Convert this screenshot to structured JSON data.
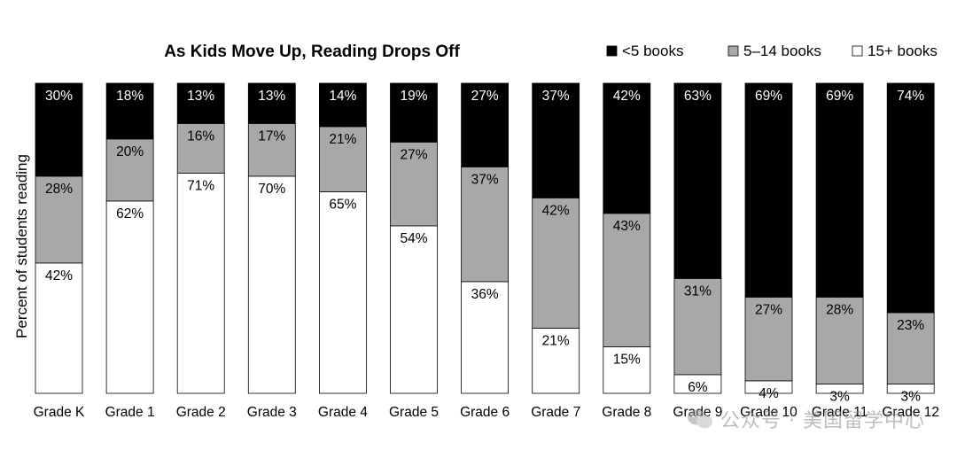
{
  "chart_data": {
    "type": "stacked-bar",
    "title": "As Kids Move Up, Reading Drops Off",
    "ylabel": "Percent of students reading",
    "xlabel": "",
    "ylim": [
      0,
      100
    ],
    "legend_position": "top-right",
    "categories": [
      "Grade K",
      "Grade 1",
      "Grade 2",
      "Grade 3",
      "Grade 4",
      "Grade 5",
      "Grade 6",
      "Grade 7",
      "Grade 8",
      "Grade 9",
      "Grade 10",
      "Grade 11",
      "Grade 12"
    ],
    "series": [
      {
        "name": "<5 books",
        "color": "#000000",
        "label_color": "#ffffff",
        "values": [
          30,
          18,
          13,
          13,
          14,
          19,
          27,
          37,
          42,
          63,
          69,
          69,
          74
        ],
        "labels": [
          "30%",
          "18%",
          "13%",
          "13%",
          "14%",
          "19%",
          "27%",
          "37%",
          "42%",
          "63%",
          "69%",
          "69%",
          "74%"
        ]
      },
      {
        "name": "5–14 books",
        "color": "#a8a8a8",
        "label_color": "#000000",
        "values": [
          28,
          20,
          16,
          17,
          21,
          27,
          37,
          42,
          43,
          31,
          27,
          28,
          23
        ],
        "labels": [
          "28%",
          "20%",
          "16%",
          "17%",
          "21%",
          "27%",
          "37%",
          "42%",
          "43%",
          "31%",
          "27%",
          "28%",
          "23%"
        ]
      },
      {
        "name": "15+ books",
        "color": "#ffffff",
        "label_color": "#000000",
        "values": [
          42,
          62,
          71,
          70,
          65,
          54,
          36,
          21,
          15,
          6,
          4,
          3,
          3
        ],
        "labels": [
          "42%",
          "62%",
          "71%",
          "70%",
          "65%",
          "54%",
          "36%",
          "21%",
          "15%",
          "6%",
          "4%",
          "3%",
          "3%"
        ]
      }
    ]
  },
  "watermark": {
    "text": "公众号 · 美国留学中心",
    "icon": "chat-bubble-icon"
  }
}
